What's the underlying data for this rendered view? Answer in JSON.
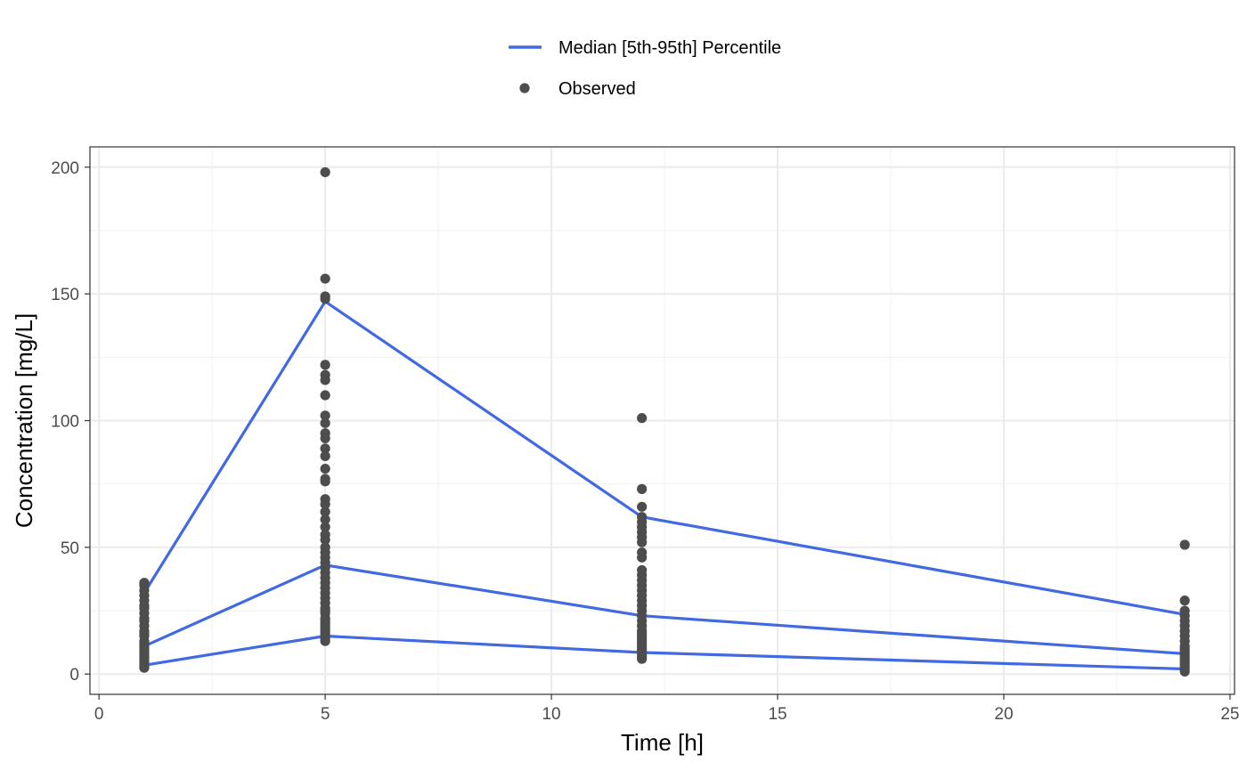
{
  "chart_data": {
    "type": "line",
    "xlabel": "Time [h]",
    "ylabel": "Concentration [mg/L]",
    "xlim": [
      -0.2,
      25.1
    ],
    "ylim": [
      -8,
      208
    ],
    "x_ticks": [
      0,
      5,
      10,
      15,
      20,
      25
    ],
    "y_ticks": [
      0,
      50,
      100,
      150,
      200
    ],
    "x_tick_labels": [
      "0",
      "5",
      "10",
      "15",
      "20",
      "25"
    ],
    "y_tick_labels": [
      "0",
      "50",
      "100",
      "150",
      "200"
    ],
    "grid": true,
    "legend_position": "top",
    "legend": [
      {
        "label": "Median [5th-95th] Percentile",
        "kind": "line",
        "color": "#4169E1"
      },
      {
        "label": "Observed",
        "kind": "point",
        "color": "#4D4D4D"
      }
    ],
    "series": [
      {
        "role": "95th",
        "color": "#4169E1",
        "x": [
          1,
          5,
          12,
          24
        ],
        "y": [
          32,
          147,
          62,
          23.5
        ]
      },
      {
        "role": "median",
        "color": "#4169E1",
        "x": [
          1,
          5,
          12,
          24
        ],
        "y": [
          11,
          43,
          23,
          8
        ]
      },
      {
        "role": "5th",
        "color": "#4169E1",
        "x": [
          1,
          5,
          12,
          24
        ],
        "y": [
          3.5,
          15,
          8.5,
          2
        ]
      }
    ],
    "observed": {
      "color": "#4D4D4D",
      "points": [
        {
          "x": 1,
          "y": [
            36,
            35,
            33,
            31,
            29,
            27,
            26,
            24,
            22,
            21,
            19,
            17,
            16,
            15,
            13,
            12,
            11,
            10,
            9,
            8,
            7,
            6,
            5,
            4,
            3,
            2.5
          ]
        },
        {
          "x": 5,
          "y": [
            198,
            156,
            149,
            148,
            122,
            118,
            116,
            110,
            102,
            99,
            95,
            93,
            89,
            86,
            81,
            77,
            76,
            69,
            67,
            64,
            61,
            58,
            55,
            53,
            50,
            48,
            46,
            44,
            42,
            40,
            38,
            36,
            34,
            32,
            30,
            28,
            26,
            25,
            24,
            22,
            21,
            20,
            19,
            18,
            17,
            16,
            15,
            14,
            13
          ]
        },
        {
          "x": 12,
          "y": [
            101,
            73,
            66,
            62,
            60,
            58,
            56,
            54,
            52,
            48,
            46,
            41,
            39,
            37,
            35,
            33,
            31,
            29,
            27,
            25,
            23,
            21,
            19,
            17,
            16,
            15,
            14,
            13,
            12,
            11,
            10,
            9,
            8,
            7,
            6
          ]
        },
        {
          "x": 24,
          "y": [
            51,
            29,
            25,
            23,
            21,
            19,
            17,
            15,
            13,
            11,
            10,
            9,
            8,
            7,
            6,
            5,
            4,
            3,
            2,
            1
          ]
        }
      ]
    }
  }
}
